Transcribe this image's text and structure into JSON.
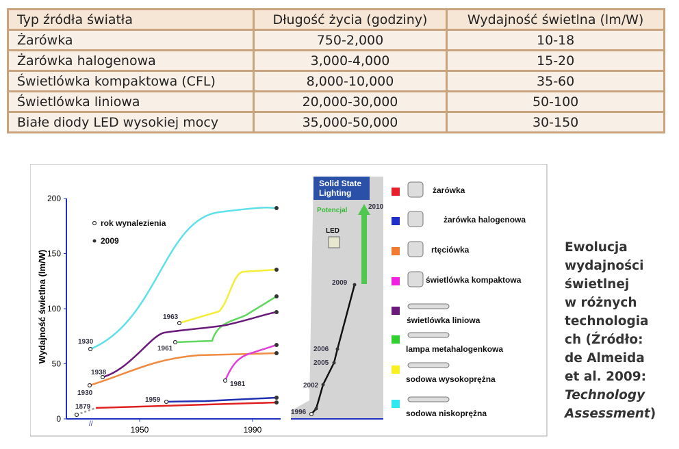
{
  "table": {
    "header": [
      "Typ źródła światła",
      "Długość życia (godziny)",
      "Wydajność świetlna (lm/W)"
    ],
    "rows": [
      [
        "Żarówka",
        "750-2,000",
        "10-18"
      ],
      [
        "Żarówka halogenowa",
        "3,000-4,000",
        "15-20"
      ],
      [
        "Świetlówka kompaktowa (CFL)",
        "8,000-10,000",
        "35-60"
      ],
      [
        "Świetlówka liniowa",
        "20,000-30,000",
        "50-100"
      ],
      [
        "Białe diody LED wysokiej mocy",
        "35,000-50,000",
        "30-150"
      ]
    ]
  },
  "figure": {
    "y_axis_label": "Wydajność świetlna (lm/W)",
    "yticks": [
      0,
      50,
      100,
      150,
      200
    ],
    "xticks": [
      1950,
      1990
    ],
    "axis_break": "//",
    "markers": [
      "rok wynalezienia",
      "2009"
    ],
    "curve_years": [
      "1930",
      "1938",
      "1930",
      "1879",
      "1959",
      "1963",
      "1961",
      "1981"
    ],
    "led_panel": {
      "title": "Solid State Lighting",
      "potential": "Potencjal",
      "arrow_year": "2010",
      "led": "LED",
      "years": [
        "2009",
        "2006",
        "2005",
        "2002",
        "1996"
      ]
    },
    "legend": [
      {
        "name": "żarówka",
        "color": "#e8202a"
      },
      {
        "name": "żarówka halogenowa",
        "color": "#1f2fc8"
      },
      {
        "name": "rtęciówka",
        "color": "#f07a30"
      },
      {
        "name": "świetlówka kompaktowa",
        "color": "#f020e0"
      },
      {
        "name": "świetlówka liniowa",
        "color": "#6a1a7a"
      },
      {
        "name": "lampa metahalogenkowa",
        "color": "#30d030"
      },
      {
        "name": "sodowa wysokoprężna",
        "color": "#f8f020"
      },
      {
        "name": "sodowa niskoprężna",
        "color": "#30e8f0"
      }
    ]
  },
  "caption": {
    "lines": [
      "Ewolucja",
      "wydajności",
      "świetlnej",
      "w różnych",
      "technologia",
      "ch (Źródło:",
      "de Almeida",
      "et al. 2009:"
    ],
    "source_title": [
      "Technology",
      "Assessment"
    ],
    "closing": ")"
  }
}
